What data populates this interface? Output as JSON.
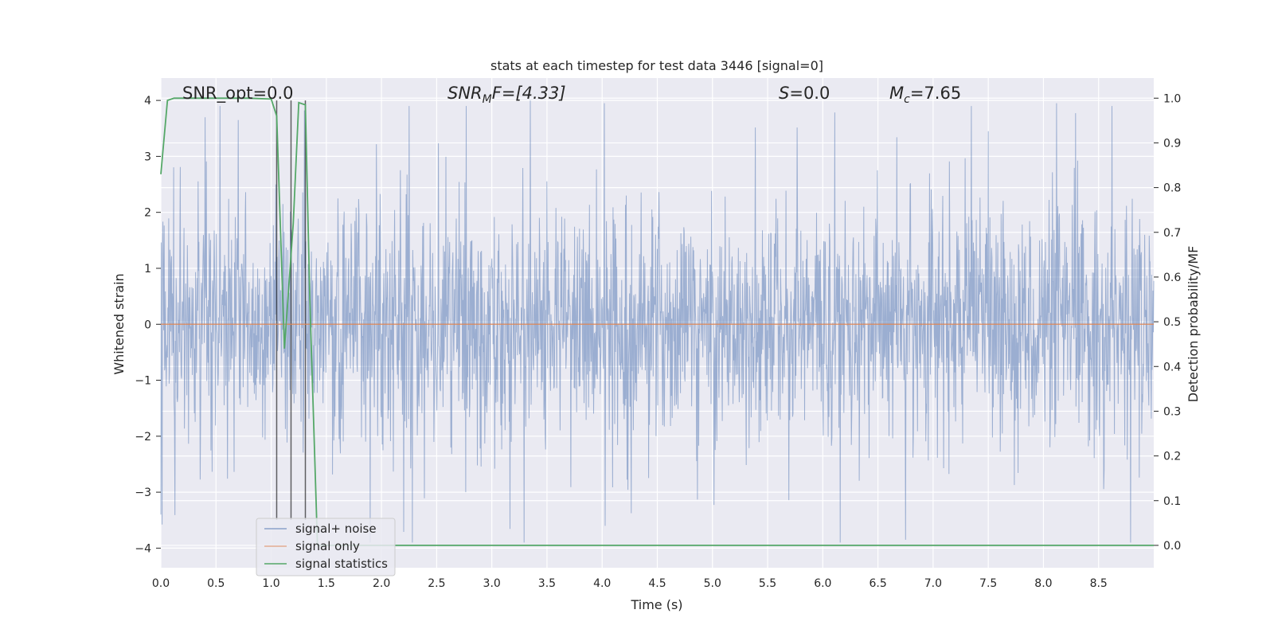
{
  "chart_data": {
    "type": "line",
    "title": "stats at each timestep for test data 3446 [signal=0]",
    "xlabel": "Time (s)",
    "ylabel_left": "Whitened strain",
    "ylabel_right": "Detection probability/MF",
    "xlim": [
      0.0,
      9.0
    ],
    "ylim_left": [
      -4.35,
      4.4
    ],
    "ylim_right": [
      -0.05,
      1.045
    ],
    "x_ticks": [
      "0.0",
      "0.5",
      "1.0",
      "1.5",
      "2.0",
      "2.5",
      "3.0",
      "3.5",
      "4.0",
      "4.5",
      "5.0",
      "5.5",
      "6.0",
      "6.5",
      "7.0",
      "7.5",
      "8.0",
      "8.5"
    ],
    "y_ticks_left": [
      "4",
      "3",
      "2",
      "1",
      "0",
      "−1",
      "−2",
      "−3",
      "−4"
    ],
    "y_ticks_right": [
      "1.0",
      "0.9",
      "0.8",
      "0.7",
      "0.6",
      "0.5",
      "0.4",
      "0.3",
      "0.2",
      "0.1",
      "0.0"
    ],
    "grid": true,
    "legend_placement": "lower-left",
    "annotations": {
      "snr_opt": "SNR_opt=0.0",
      "snr_mf_prefix": "SNR",
      "snr_mf_sub": "M",
      "snr_mf_rest": "F=[4.33]",
      "s_prefix": "S",
      "s_rest": "=0.0",
      "mc_prefix": "M",
      "mc_sub": "c",
      "mc_rest": "=7.65"
    },
    "vertical_lines_x": [
      1.05,
      1.18,
      1.31
    ],
    "series": [
      {
        "name": "signal+ noise",
        "color": "#4c72b0",
        "axis": "left",
        "description_values": "noise-like whitened strain, amplitude mostly within ±2.5, peaks to about ±4",
        "peak_values": [
          {
            "x": 0.4,
            "y": 3.7
          },
          {
            "x": 0.7,
            "y": 3.65
          },
          {
            "x": 3.35,
            "y": 4.0
          },
          {
            "x": 4.02,
            "y": 3.95
          },
          {
            "x": 8.12,
            "y": 3.95
          },
          {
            "x": 7.5,
            "y": 3.45
          },
          {
            "x": 2.28,
            "y": -3.9
          },
          {
            "x": 6.75,
            "y": -3.85
          },
          {
            "x": 0.0,
            "y": -3.4
          }
        ]
      },
      {
        "name": "signal only",
        "color": "#dd8452",
        "axis": "left",
        "x": [
          0.0,
          9.0
        ],
        "y": [
          0.0,
          0.0
        ]
      },
      {
        "name": "signal statistics",
        "color": "#55a868",
        "axis": "right",
        "x": [
          0.0,
          0.06,
          0.12,
          0.2,
          0.5,
          0.8,
          1.0,
          1.05,
          1.12,
          1.2,
          1.25,
          1.31,
          1.35,
          1.42,
          1.5,
          2.0,
          5.0,
          9.0
        ],
        "y": [
          0.83,
          0.995,
          1.0,
          1.0,
          1.0,
          1.0,
          0.998,
          0.96,
          0.44,
          0.72,
          0.99,
          0.985,
          0.55,
          0.0,
          0.0,
          0.0,
          0.0,
          0.0
        ]
      }
    ]
  }
}
